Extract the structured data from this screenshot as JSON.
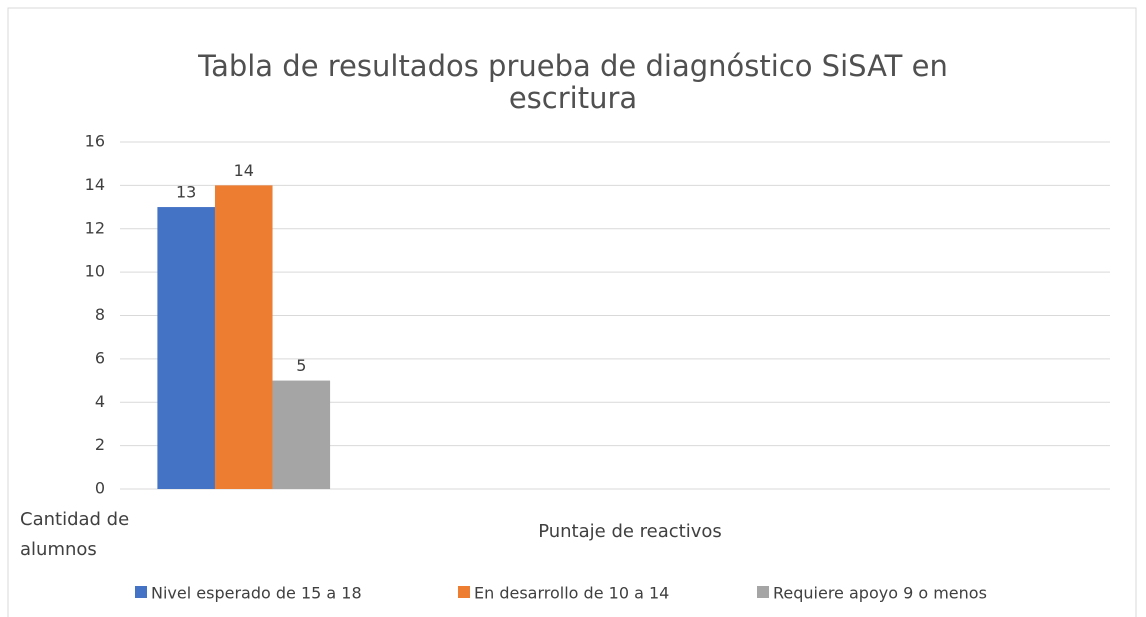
{
  "chart_data": {
    "type": "bar",
    "title": "Tabla de resultados prueba de diagnóstico SiSAT en escritura",
    "xlabel": "Puntaje de reactivos",
    "categories": [
      "Cantidad de alumnos",
      null,
      null,
      null
    ],
    "series": [
      {
        "name": "Nivel esperado de 15 a 18",
        "color": "#4472c4",
        "values": [
          13,
          null,
          null,
          null
        ]
      },
      {
        "name": "En desarrollo de 10 a 14",
        "color": "#ed7d31",
        "values": [
          14,
          null,
          null,
          null
        ]
      },
      {
        "name": "Requiere apoyo 9 o menos",
        "color": "#a5a5a5",
        "values": [
          5,
          null,
          null,
          null
        ]
      }
    ],
    "ylim": [
      0,
      16
    ],
    "yticks": [
      0,
      2,
      4,
      6,
      8,
      10,
      12,
      14,
      16
    ],
    "grid": true,
    "legend": "bottom"
  }
}
